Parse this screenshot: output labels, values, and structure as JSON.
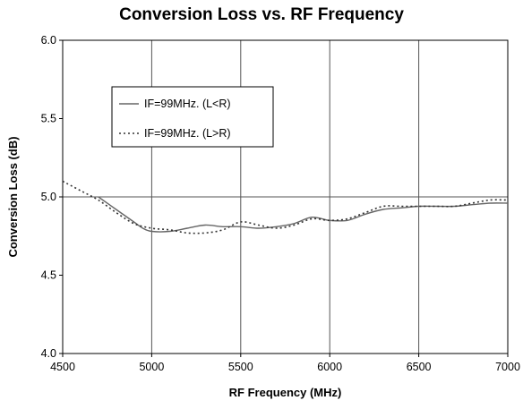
{
  "chart_data": {
    "type": "line",
    "title": "Conversion Loss vs. RF Frequency",
    "xlabel": "RF Frequency (MHz)",
    "ylabel": "Conversion Loss (dB)",
    "xlim": [
      4500,
      7000
    ],
    "ylim": [
      4.0,
      6.0
    ],
    "x_ticks": [
      "4500",
      "5000",
      "5500",
      "6000",
      "6500",
      "7000"
    ],
    "y_ticks": [
      "4.0",
      "4.5",
      "5.0",
      "5.5",
      "6.0"
    ],
    "grid": "vertical at major x ticks, horizontal at y = 5.0",
    "legend_position": "upper-left inside plot",
    "series": [
      {
        "name": "IF=99MHz. (L<R)",
        "style": "solid",
        "color": "#666666",
        "x": [
          4700,
          4800,
          4900,
          4950,
          5000,
          5100,
          5200,
          5300,
          5400,
          5500,
          5600,
          5700,
          5800,
          5900,
          6000,
          6100,
          6200,
          6300,
          6400,
          6500,
          6600,
          6700,
          6800,
          6900,
          7000
        ],
        "y": [
          5.0,
          4.92,
          4.84,
          4.8,
          4.78,
          4.78,
          4.8,
          4.82,
          4.81,
          4.81,
          4.8,
          4.81,
          4.83,
          4.87,
          4.85,
          4.85,
          4.89,
          4.92,
          4.93,
          4.94,
          4.94,
          4.94,
          4.95,
          4.96,
          4.96
        ]
      },
      {
        "name": "IF=99MHz. (L>R)",
        "style": "dotted",
        "color": "#333333",
        "x": [
          4500,
          4600,
          4700,
          4800,
          4900,
          5000,
          5100,
          5200,
          5300,
          5400,
          5500,
          5600,
          5700,
          5800,
          5900,
          6000,
          6100,
          6200,
          6300,
          6400,
          6500,
          6600,
          6700,
          6800,
          6900,
          7000
        ],
        "y": [
          5.1,
          5.04,
          4.98,
          4.9,
          4.83,
          4.8,
          4.79,
          4.77,
          4.77,
          4.79,
          4.84,
          4.82,
          4.8,
          4.82,
          4.86,
          4.85,
          4.86,
          4.9,
          4.94,
          4.94,
          4.94,
          4.94,
          4.94,
          4.96,
          4.98,
          4.98
        ]
      }
    ]
  }
}
